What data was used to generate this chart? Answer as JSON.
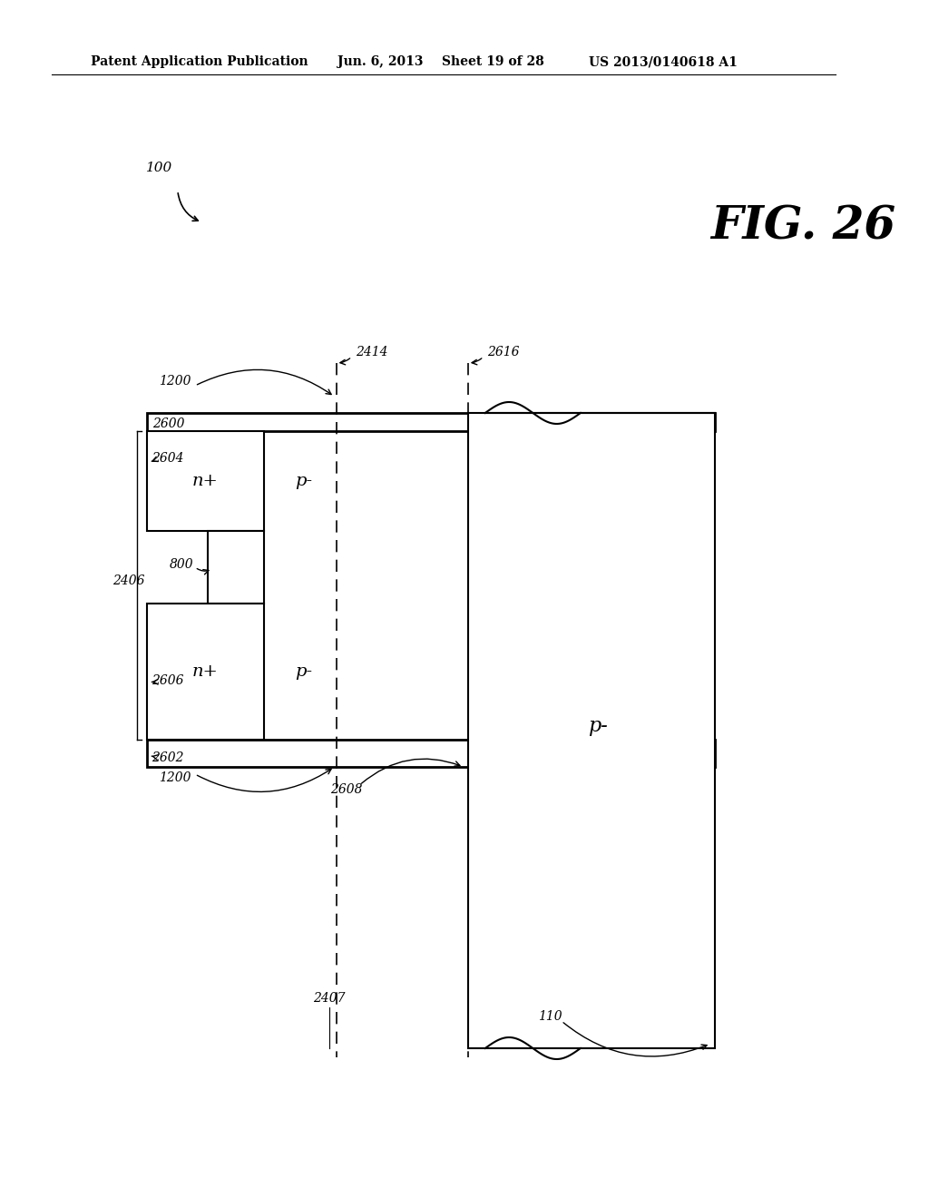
{
  "bg_color": "#ffffff",
  "header_text": "Patent Application Publication",
  "header_date": "Jun. 6, 2013",
  "header_sheet": "Sheet 19 of 28",
  "header_patent": "US 2013/0140618 A1",
  "fig_label": "FIG. 26",
  "ref_100": "100",
  "ref_110": "110",
  "ref_800": "800",
  "ref_1200a": "1200",
  "ref_1200b": "1200",
  "ref_2406": "2406",
  "ref_2407": "2407",
  "ref_2414": "2414",
  "ref_2600": "2600",
  "ref_2602": "2602",
  "ref_2604": "2604",
  "ref_2606": "2606",
  "ref_2608": "2608",
  "ref_2616": "2616",
  "label_np_top": "n+",
  "label_pm_top": "p-",
  "label_np_bot": "n+",
  "label_pm_bot": "p-",
  "label_pm_right": "p-"
}
